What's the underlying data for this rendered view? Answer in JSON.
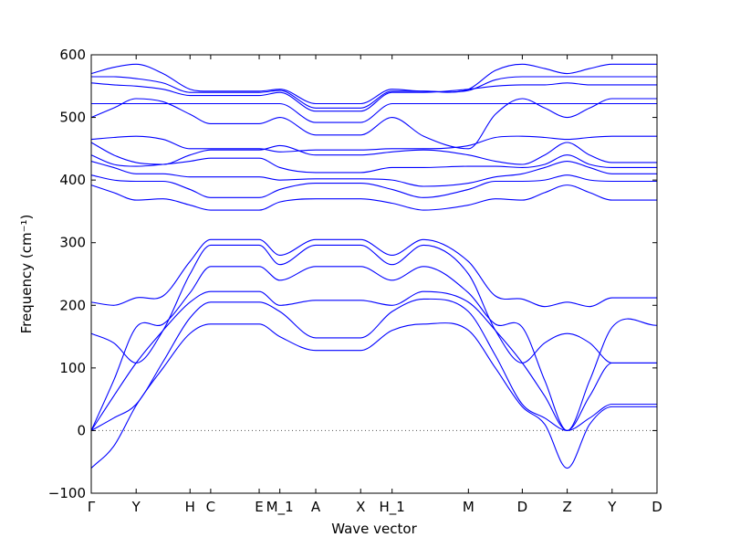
{
  "chart_data": {
    "type": "line",
    "xlabel": "Wave vector",
    "ylabel": "Frequency (cm⁻¹)",
    "ylim": [
      -100,
      600
    ],
    "yticks": [
      -100,
      0,
      100,
      200,
      300,
      400,
      500,
      600
    ],
    "grid": false,
    "zero_line": "dotted",
    "high_symmetry_points": [
      {
        "label": "Γ",
        "x": 0.0
      },
      {
        "label": "Y",
        "x": 0.5
      },
      {
        "label": "H",
        "x": 1.1
      },
      {
        "label": "C",
        "x": 1.33
      },
      {
        "label": "E",
        "x": 1.87
      },
      {
        "label": "M_1",
        "x": 2.1
      },
      {
        "label": "A",
        "x": 2.5
      },
      {
        "label": "X",
        "x": 3.0
      },
      {
        "label": "H_1",
        "x": 3.35
      },
      {
        "label": "M",
        "x": 4.2
      },
      {
        "label": "D",
        "x": 4.8
      },
      {
        "label": "Z",
        "x": 5.3
      },
      {
        "label": "Y",
        "x": 5.8
      },
      {
        "label": "D",
        "x": 6.3
      }
    ],
    "series": [
      {
        "x": [
          0.0,
          0.25,
          0.5,
          0.8,
          1.1,
          1.33,
          1.87,
          2.1,
          2.5,
          3.0,
          3.35,
          3.7,
          4.2,
          4.5,
          4.8,
          5.05,
          5.3,
          5.55,
          5.8,
          6.3
        ],
        "y": [
          -60,
          -25,
          40,
          100,
          155,
          170,
          170,
          150,
          128,
          128,
          160,
          170,
          160,
          100,
          38,
          10,
          -60,
          10,
          38,
          38
        ]
      },
      {
        "x": [
          0.0,
          0.25,
          0.5,
          0.8,
          1.1,
          1.33,
          1.87,
          2.1,
          2.5,
          3.0,
          3.35,
          3.7,
          4.2,
          4.5,
          4.8,
          5.05,
          5.3,
          5.55,
          5.8,
          6.3
        ],
        "y": [
          0,
          20,
          42,
          110,
          180,
          205,
          205,
          190,
          148,
          148,
          190,
          210,
          190,
          120,
          42,
          20,
          0,
          20,
          42,
          42
        ]
      },
      {
        "x": [
          0.0,
          0.25,
          0.5,
          0.8,
          1.1,
          1.33,
          1.87,
          2.1,
          2.5,
          3.0,
          3.35,
          3.7,
          4.2,
          4.5,
          4.8,
          5.05,
          5.3,
          5.55,
          5.8,
          6.3
        ],
        "y": [
          0,
          55,
          108,
          160,
          205,
          222,
          222,
          200,
          208,
          208,
          200,
          222,
          205,
          160,
          108,
          55,
          0,
          55,
          108,
          108
        ]
      },
      {
        "x": [
          0.0,
          0.25,
          0.5,
          0.8,
          1.1,
          1.33,
          1.87,
          2.1,
          2.5,
          3.0,
          3.35,
          3.7,
          4.2,
          4.5,
          4.8,
          5.05,
          5.3,
          5.55,
          5.8,
          6.3
        ],
        "y": [
          0,
          80,
          165,
          170,
          220,
          262,
          262,
          240,
          262,
          262,
          240,
          262,
          220,
          170,
          165,
          80,
          0,
          80,
          165,
          168
        ]
      },
      {
        "x": [
          0.0,
          0.25,
          0.5,
          0.8,
          1.1,
          1.33,
          1.87,
          2.1,
          2.5,
          3.0,
          3.35,
          3.7,
          4.2,
          4.5,
          4.8,
          5.05,
          5.3,
          5.55,
          5.8,
          6.3
        ],
        "y": [
          155,
          140,
          108,
          160,
          250,
          296,
          296,
          265,
          296,
          296,
          265,
          296,
          250,
          160,
          108,
          140,
          155,
          140,
          108,
          108
        ]
      },
      {
        "x": [
          0.0,
          0.25,
          0.5,
          0.8,
          1.1,
          1.33,
          1.87,
          2.1,
          2.5,
          3.0,
          3.35,
          3.7,
          4.2,
          4.5,
          4.8,
          5.05,
          5.3,
          5.55,
          5.8,
          6.3
        ],
        "y": [
          205,
          200,
          212,
          215,
          270,
          305,
          305,
          280,
          305,
          305,
          280,
          305,
          270,
          215,
          210,
          198,
          205,
          198,
          212,
          212
        ]
      },
      {
        "x": [
          0.0,
          0.25,
          0.5,
          0.8,
          1.1,
          1.33,
          1.87,
          2.1,
          2.5,
          3.0,
          3.35,
          3.7,
          4.2,
          4.5,
          4.8,
          5.05,
          5.3,
          5.55,
          5.8,
          6.3
        ],
        "y": [
          392,
          380,
          368,
          370,
          360,
          352,
          352,
          365,
          370,
          370,
          363,
          352,
          360,
          370,
          368,
          380,
          392,
          380,
          368,
          368
        ]
      },
      {
        "x": [
          0.0,
          0.25,
          0.5,
          0.8,
          1.1,
          1.33,
          1.87,
          2.1,
          2.5,
          3.0,
          3.35,
          3.7,
          4.2,
          4.5,
          4.8,
          5.05,
          5.3,
          5.55,
          5.8,
          6.3
        ],
        "y": [
          408,
          400,
          398,
          398,
          385,
          372,
          372,
          385,
          395,
          395,
          385,
          372,
          385,
          398,
          398,
          400,
          408,
          400,
          398,
          398
        ]
      },
      {
        "x": [
          0.0,
          0.25,
          0.5,
          0.8,
          1.1,
          1.33,
          1.87,
          2.1,
          2.5,
          3.0,
          3.35,
          3.7,
          4.2,
          4.5,
          4.8,
          5.05,
          5.3,
          5.55,
          5.8,
          6.3
        ],
        "y": [
          430,
          420,
          410,
          410,
          405,
          405,
          405,
          400,
          402,
          402,
          400,
          390,
          395,
          405,
          410,
          420,
          430,
          420,
          410,
          410
        ]
      },
      {
        "x": [
          0.0,
          0.25,
          0.5,
          0.8,
          1.1,
          1.33,
          1.87,
          2.1,
          2.5,
          3.0,
          3.35,
          3.7,
          4.2,
          4.5,
          4.8,
          5.05,
          5.3,
          5.55,
          5.8,
          6.3
        ],
        "y": [
          440,
          425,
          422,
          425,
          430,
          435,
          435,
          420,
          412,
          412,
          420,
          420,
          422,
          422,
          420,
          425,
          440,
          425,
          420,
          420
        ]
      },
      {
        "x": [
          0.0,
          0.25,
          0.5,
          0.8,
          1.1,
          1.33,
          1.87,
          2.1,
          2.5,
          3.0,
          3.35,
          3.7,
          4.2,
          4.5,
          4.8,
          5.05,
          5.3,
          5.55,
          5.8,
          6.3
        ],
        "y": [
          460,
          440,
          428,
          425,
          440,
          448,
          448,
          455,
          440,
          440,
          445,
          448,
          440,
          430,
          425,
          440,
          460,
          440,
          428,
          428
        ]
      },
      {
        "x": [
          0.0,
          0.25,
          0.5,
          0.8,
          1.1,
          1.33,
          1.87,
          2.1,
          2.5,
          3.0,
          3.35,
          3.7,
          4.2,
          4.5,
          4.8,
          5.05,
          5.3,
          5.55,
          5.8,
          6.3
        ],
        "y": [
          465,
          468,
          470,
          465,
          450,
          450,
          450,
          445,
          448,
          448,
          450,
          450,
          455,
          468,
          470,
          468,
          465,
          468,
          470,
          470
        ]
      },
      {
        "x": [
          0.0,
          0.25,
          0.5,
          0.8,
          1.1,
          1.33,
          1.87,
          2.1,
          2.5,
          3.0,
          3.35,
          3.7,
          4.2,
          4.5,
          4.8,
          5.05,
          5.3,
          5.55,
          5.8,
          6.3
        ],
        "y": [
          500,
          515,
          530,
          525,
          505,
          490,
          490,
          500,
          472,
          472,
          500,
          470,
          450,
          505,
          530,
          515,
          500,
          515,
          530,
          530
        ]
      },
      {
        "x": [
          0.0,
          0.25,
          0.5,
          0.8,
          1.1,
          1.33,
          1.87,
          2.1,
          2.5,
          3.0,
          3.35,
          3.7,
          4.2,
          4.5,
          4.8,
          5.05,
          5.3,
          5.55,
          5.8,
          6.3
        ],
        "y": [
          522,
          522,
          522,
          522,
          522,
          522,
          522,
          522,
          492,
          492,
          522,
          522,
          522,
          522,
          522,
          522,
          522,
          522,
          522,
          522
        ]
      },
      {
        "x": [
          0.0,
          0.25,
          0.5,
          0.8,
          1.1,
          1.33,
          1.87,
          2.1,
          2.5,
          3.0,
          3.35,
          3.7,
          4.2,
          4.5,
          4.8,
          5.05,
          5.3,
          5.55,
          5.8,
          6.3
        ],
        "y": [
          555,
          552,
          550,
          545,
          535,
          535,
          535,
          540,
          510,
          510,
          540,
          540,
          545,
          550,
          552,
          552,
          555,
          552,
          552,
          552
        ]
      },
      {
        "x": [
          0.0,
          0.25,
          0.5,
          0.8,
          1.1,
          1.33,
          1.87,
          2.1,
          2.5,
          3.0,
          3.35,
          3.7,
          4.2,
          4.5,
          4.8,
          5.05,
          5.3,
          5.55,
          5.8,
          6.3
        ],
        "y": [
          565,
          565,
          562,
          555,
          540,
          540,
          540,
          543,
          515,
          515,
          542,
          542,
          543,
          560,
          565,
          565,
          565,
          565,
          565,
          565
        ]
      },
      {
        "x": [
          0.0,
          0.25,
          0.5,
          0.8,
          1.1,
          1.33,
          1.87,
          2.1,
          2.5,
          3.0,
          3.35,
          3.7,
          4.2,
          4.5,
          4.8,
          5.05,
          5.3,
          5.55,
          5.8,
          6.3
        ],
        "y": [
          570,
          580,
          585,
          570,
          545,
          542,
          542,
          545,
          522,
          522,
          545,
          542,
          545,
          575,
          585,
          578,
          570,
          578,
          585,
          585
        ]
      }
    ]
  },
  "colors": {
    "line": "#0000ff",
    "axes": "#000000",
    "zero_line": "#555555"
  }
}
